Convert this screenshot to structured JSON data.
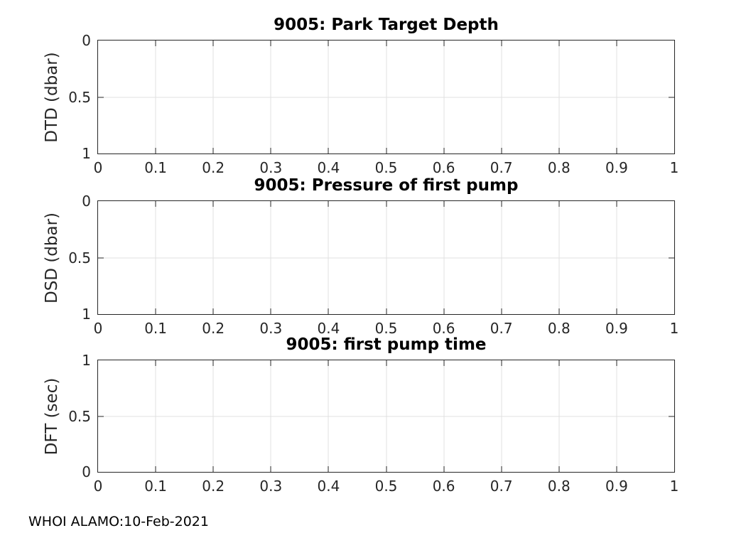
{
  "figure": {
    "footer": "WHOI ALAMO:10-Feb-2021",
    "background": "#ffffff",
    "colors": {
      "axis": "#262626",
      "grid": "#e0e0e0",
      "title": "#000000",
      "tick_label": "#262626"
    }
  },
  "chart_data": [
    {
      "type": "line",
      "title": "9005: Park Target Depth",
      "xlabel": "",
      "ylabel": "DTD (dbar)",
      "xlim": [
        0,
        1
      ],
      "ylim": [
        0,
        1
      ],
      "ydir": "reverse",
      "xticks": [
        0,
        0.1,
        0.2,
        0.3,
        0.4,
        0.5,
        0.6,
        0.7,
        0.8,
        0.9,
        1
      ],
      "xtick_labels": [
        "0",
        "0.1",
        "0.2",
        "0.3",
        "0.4",
        "0.5",
        "0.6",
        "0.7",
        "0.8",
        "0.9",
        "1"
      ],
      "yticks": [
        0,
        0.5,
        1
      ],
      "ytick_labels": [
        "0",
        "0.5",
        "1"
      ],
      "grid": true,
      "box": true,
      "legend": null,
      "series": []
    },
    {
      "type": "line",
      "title": "9005: Pressure of first pump",
      "xlabel": "",
      "ylabel": "DSD (dbar)",
      "xlim": [
        0,
        1
      ],
      "ylim": [
        0,
        1
      ],
      "ydir": "reverse",
      "xticks": [
        0,
        0.1,
        0.2,
        0.3,
        0.4,
        0.5,
        0.6,
        0.7,
        0.8,
        0.9,
        1
      ],
      "xtick_labels": [
        "0",
        "0.1",
        "0.2",
        "0.3",
        "0.4",
        "0.5",
        "0.6",
        "0.7",
        "0.8",
        "0.9",
        "1"
      ],
      "yticks": [
        0,
        0.5,
        1
      ],
      "ytick_labels": [
        "0",
        "0.5",
        "1"
      ],
      "grid": true,
      "box": true,
      "legend": null,
      "series": []
    },
    {
      "type": "line",
      "title": "9005: first pump time",
      "xlabel": "",
      "ylabel": "DFT (sec)",
      "xlim": [
        0,
        1
      ],
      "ylim": [
        0,
        1
      ],
      "ydir": "normal",
      "xticks": [
        0,
        0.1,
        0.2,
        0.3,
        0.4,
        0.5,
        0.6,
        0.7,
        0.8,
        0.9,
        1
      ],
      "xtick_labels": [
        "0",
        "0.1",
        "0.2",
        "0.3",
        "0.4",
        "0.5",
        "0.6",
        "0.7",
        "0.8",
        "0.9",
        "1"
      ],
      "yticks": [
        0,
        0.5,
        1
      ],
      "ytick_labels": [
        "0",
        "0.5",
        "1"
      ],
      "grid": true,
      "box": true,
      "legend": null,
      "series": []
    }
  ]
}
